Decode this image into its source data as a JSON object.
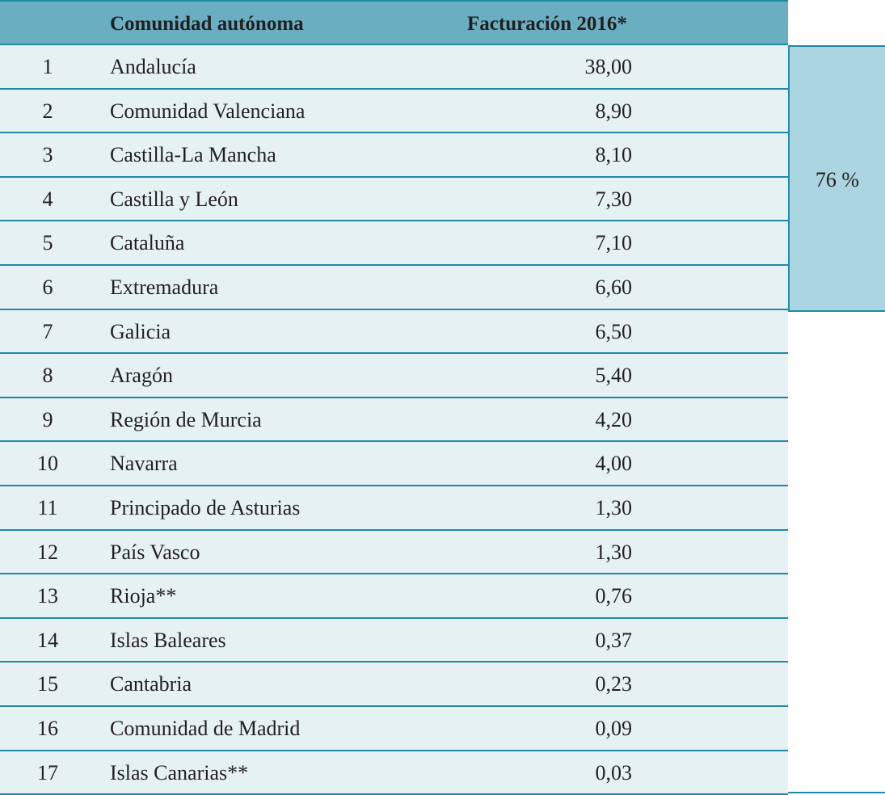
{
  "table": {
    "headers": {
      "rank": "",
      "name": "Comunidad autónoma",
      "value": "Facturación 2016*"
    },
    "rows": [
      {
        "rank": "1",
        "name": "Andalucía",
        "value": "38,00"
      },
      {
        "rank": "2",
        "name": "Comunidad Valenciana",
        "value": "8,90"
      },
      {
        "rank": "3",
        "name": "Castilla-La Mancha",
        "value": "8,10"
      },
      {
        "rank": "4",
        "name": "Castilla y León",
        "value": "7,30"
      },
      {
        "rank": "5",
        "name": "Cataluña",
        "value": "7,10"
      },
      {
        "rank": "6",
        "name": "Extremadura",
        "value": "6,60"
      },
      {
        "rank": "7",
        "name": "Galicia",
        "value": "6,50"
      },
      {
        "rank": "8",
        "name": "Aragón",
        "value": "5,40"
      },
      {
        "rank": "9",
        "name": "Región de Murcia",
        "value": "4,20"
      },
      {
        "rank": "10",
        "name": "Navarra",
        "value": "4,00"
      },
      {
        "rank": "11",
        "name": "Principado de Asturias",
        "value": "1,30"
      },
      {
        "rank": "12",
        "name": "País Vasco",
        "value": "1,30"
      },
      {
        "rank": "13",
        "name": "Rioja**",
        "value": "0,76"
      },
      {
        "rank": "14",
        "name": "Islas Baleares",
        "value": "0,37"
      },
      {
        "rank": "15",
        "name": "Cantabria",
        "value": "0,23"
      },
      {
        "rank": "16",
        "name": "Comunidad de Madrid",
        "value": "0,09"
      },
      {
        "rank": "17",
        "name": "Islas Canarias**",
        "value": "0,03"
      }
    ],
    "group_total": {
      "label": "76 %",
      "covers_rows": "1-6"
    }
  },
  "colors": {
    "header_bg": "#69afc1",
    "row_bg": "#e6f1f4",
    "group_bg": "#abd5e0",
    "rule": "#1e8aa5"
  }
}
